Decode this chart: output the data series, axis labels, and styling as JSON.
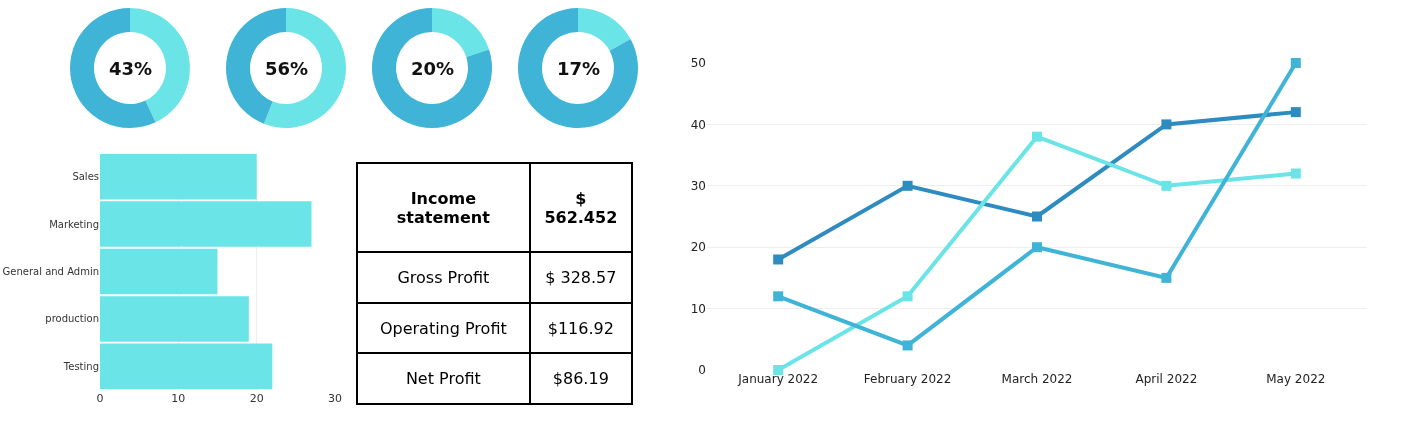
{
  "chart_data": [
    {
      "type": "donut",
      "categories": [
        null,
        null
      ],
      "values": [
        43,
        57
      ],
      "colors": [
        "#6ae4e6",
        "#40b4d6"
      ],
      "annotations": [
        "43%"
      ]
    },
    {
      "type": "donut",
      "categories": [
        null,
        null
      ],
      "values": [
        56,
        44
      ],
      "colors": [
        "#6ae4e6",
        "#40b4d6"
      ],
      "annotations": [
        "56%"
      ]
    },
    {
      "type": "donut",
      "categories": [
        null,
        null
      ],
      "values": [
        20,
        80
      ],
      "colors": [
        "#6ae4e6",
        "#40b4d6"
      ],
      "annotations": [
        "20%"
      ]
    },
    {
      "type": "donut",
      "categories": [
        null,
        null
      ],
      "values": [
        17,
        83
      ],
      "colors": [
        "#6ae4e6",
        "#40b4d6"
      ],
      "annotations": [
        "17%"
      ]
    },
    {
      "type": "bar",
      "orientation": "horizontal",
      "categories": [
        "Sales",
        "Marketing",
        "General and Admin",
        "production",
        "Testing"
      ],
      "values": [
        20,
        27,
        15,
        19,
        22
      ],
      "color": "#6ae4e6",
      "xlim": [
        0,
        30
      ],
      "xticks": [
        0,
        10,
        20,
        30
      ],
      "grid": "x"
    },
    {
      "type": "other",
      "annotations": [
        "Income statement",
        "$ 562.452",
        "Gross Profit",
        "$ 328.57",
        "Operating Profit",
        "$116.92",
        "Net Profit",
        "$86.19"
      ]
    },
    {
      "type": "line",
      "categories": [
        "January 2022",
        "February 2022",
        "March 2022",
        "April 2022",
        "May 2022"
      ],
      "series": [
        {
          "color": "#2e8bc0",
          "values": [
            18,
            30,
            25,
            40,
            42
          ]
        },
        {
          "color": "#6ae4e6",
          "values": [
            0,
            12,
            38,
            30,
            32
          ]
        },
        {
          "color": "#40b4d6",
          "values": [
            12,
            4,
            20,
            15,
            50
          ]
        }
      ],
      "ylim": [
        0,
        50
      ],
      "yticks": [
        0,
        10,
        20,
        30,
        40,
        50
      ],
      "grid": "y",
      "marker": "square",
      "line_style": "solid"
    }
  ]
}
